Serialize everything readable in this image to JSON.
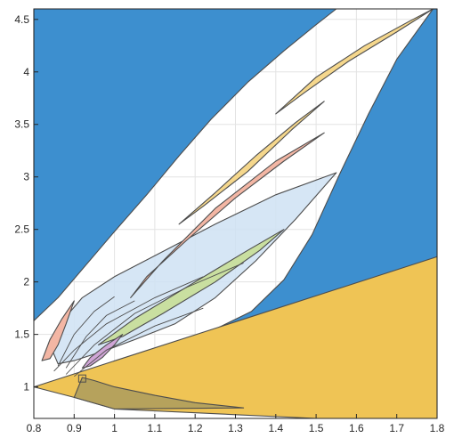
{
  "chart_data": {
    "type": "area",
    "title": "",
    "xlabel": "",
    "ylabel": "",
    "xlim": [
      0.8,
      1.8
    ],
    "ylim": [
      0.7,
      4.6
    ],
    "grid": true,
    "x_ticks": [
      0.8,
      0.9,
      1,
      1.1,
      1.2,
      1.3,
      1.4,
      1.5,
      1.6,
      1.7,
      1.8
    ],
    "x_tick_labels": [
      "0.8",
      "0.9",
      "1",
      "1.1",
      "1.2",
      "1.3",
      "1.4",
      "1.5",
      "1.6",
      "1.7",
      "1.8"
    ],
    "y_ticks": [
      1,
      1.5,
      2,
      2.5,
      3,
      3.5,
      4,
      4.5
    ],
    "y_tick_labels": [
      "1",
      "1.5",
      "2",
      "2.5",
      "3",
      "3.5",
      "4",
      "4.5"
    ],
    "colors": {
      "blue": "#3d8fcf",
      "yellow": "#efc455",
      "light_blue": "#cfe2f3",
      "salmon": "#f3b6a4",
      "gold": "#f5d78c",
      "green": "#c9dfa0",
      "purple": "#cfa5d6",
      "olive": "#b6a25c",
      "edge": "#4d4d4d"
    },
    "regions": [
      {
        "color_key": "blue",
        "points": [
          [
            0.8,
            4.6
          ],
          [
            1.55,
            4.6
          ],
          [
            1.5,
            4.45
          ],
          [
            1.42,
            4.2
          ],
          [
            1.33,
            3.9
          ],
          [
            1.24,
            3.55
          ],
          [
            1.16,
            3.2
          ],
          [
            1.08,
            2.83
          ],
          [
            1.0,
            2.48
          ],
          [
            0.92,
            2.12
          ],
          [
            0.86,
            1.85
          ],
          [
            0.8,
            1.63
          ]
        ]
      },
      {
        "color_key": "blue",
        "points": [
          [
            1.79,
            4.6
          ],
          [
            1.8,
            4.6
          ],
          [
            1.8,
            2.24
          ],
          [
            1.0,
            1.19
          ],
          [
            1.12,
            1.38
          ],
          [
            1.25,
            1.55
          ],
          [
            1.34,
            1.72
          ],
          [
            1.42,
            2.02
          ],
          [
            1.49,
            2.45
          ],
          [
            1.56,
            3.04
          ],
          [
            1.63,
            3.6
          ],
          [
            1.7,
            4.12
          ]
        ]
      },
      {
        "color_key": "yellow",
        "points": [
          [
            0.8,
            1.0
          ],
          [
            1.8,
            2.24
          ],
          [
            1.8,
            0.7
          ],
          [
            1.5,
            0.7
          ],
          [
            1.0,
            0.79
          ],
          [
            0.9,
            0.9
          ]
        ]
      },
      {
        "color_key": "olive",
        "points": [
          [
            0.9,
            0.9
          ],
          [
            1.0,
            0.79
          ],
          [
            1.32,
            0.8
          ],
          [
            1.2,
            0.85
          ],
          [
            1.1,
            0.92
          ],
          [
            1.0,
            1.0
          ],
          [
            0.95,
            1.06
          ],
          [
            0.92,
            1.09
          ]
        ]
      },
      {
        "color_key": "light_blue",
        "points": [
          [
            0.84,
            1.4
          ],
          [
            0.86,
            1.58
          ],
          [
            0.92,
            1.85
          ],
          [
            1.0,
            2.05
          ],
          [
            1.1,
            2.25
          ],
          [
            1.25,
            2.55
          ],
          [
            1.4,
            2.83
          ],
          [
            1.55,
            3.04
          ],
          [
            1.45,
            2.6
          ],
          [
            1.35,
            2.2
          ],
          [
            1.25,
            1.85
          ],
          [
            1.15,
            1.6
          ],
          [
            1.05,
            1.45
          ],
          [
            0.98,
            1.35
          ],
          [
            0.9,
            1.25
          ],
          [
            0.86,
            1.22
          ]
        ]
      },
      {
        "color_key": "green",
        "points": [
          [
            0.96,
            1.4
          ],
          [
            1.05,
            1.65
          ],
          [
            1.2,
            2.0
          ],
          [
            1.33,
            2.3
          ],
          [
            1.42,
            2.5
          ],
          [
            1.36,
            2.3
          ],
          [
            1.25,
            2.0
          ],
          [
            1.12,
            1.7
          ],
          [
            1.02,
            1.48
          ]
        ]
      },
      {
        "color_key": "salmon",
        "points": [
          [
            1.04,
            1.85
          ],
          [
            1.12,
            2.2
          ],
          [
            1.25,
            2.7
          ],
          [
            1.4,
            3.15
          ],
          [
            1.52,
            3.42
          ],
          [
            1.42,
            3.15
          ],
          [
            1.3,
            2.8
          ],
          [
            1.18,
            2.4
          ],
          [
            1.08,
            2.05
          ]
        ]
      },
      {
        "color_key": "gold",
        "points": [
          [
            1.16,
            2.55
          ],
          [
            1.25,
            2.85
          ],
          [
            1.35,
            3.2
          ],
          [
            1.45,
            3.52
          ],
          [
            1.52,
            3.72
          ],
          [
            1.44,
            3.45
          ],
          [
            1.33,
            3.05
          ],
          [
            1.22,
            2.72
          ]
        ]
      },
      {
        "color_key": "gold",
        "points": [
          [
            1.4,
            3.6
          ],
          [
            1.5,
            3.95
          ],
          [
            1.62,
            4.25
          ],
          [
            1.73,
            4.48
          ],
          [
            1.79,
            4.6
          ],
          [
            1.7,
            4.38
          ],
          [
            1.58,
            4.1
          ],
          [
            1.47,
            3.8
          ]
        ]
      },
      {
        "color_key": "purple",
        "points": [
          [
            0.92,
            1.18
          ],
          [
            0.94,
            1.28
          ],
          [
            0.98,
            1.4
          ],
          [
            1.02,
            1.5
          ],
          [
            1.0,
            1.4
          ],
          [
            0.97,
            1.28
          ],
          [
            0.94,
            1.2
          ]
        ]
      },
      {
        "color_key": "salmon",
        "points": [
          [
            0.82,
            1.25
          ],
          [
            0.84,
            1.45
          ],
          [
            0.87,
            1.65
          ],
          [
            0.9,
            1.82
          ],
          [
            0.88,
            1.6
          ],
          [
            0.86,
            1.4
          ],
          [
            0.84,
            1.27
          ]
        ]
      }
    ],
    "edge_lines": [
      [
        [
          0.85,
          1.15
        ],
        [
          0.9,
          1.35
        ],
        [
          0.98,
          1.6
        ],
        [
          1.1,
          1.85
        ],
        [
          1.22,
          2.05
        ]
      ],
      [
        [
          0.88,
          1.12
        ],
        [
          0.95,
          1.4
        ],
        [
          1.05,
          1.7
        ],
        [
          1.18,
          1.95
        ],
        [
          1.32,
          2.18
        ]
      ],
      [
        [
          0.9,
          1.1
        ],
        [
          0.98,
          1.35
        ],
        [
          1.1,
          1.58
        ],
        [
          1.22,
          1.75
        ]
      ],
      [
        [
          0.86,
          1.2
        ],
        [
          0.9,
          1.5
        ],
        [
          0.95,
          1.72
        ],
        [
          1.0,
          1.86
        ]
      ],
      [
        [
          0.88,
          1.18
        ],
        [
          0.93,
          1.48
        ],
        [
          0.98,
          1.68
        ],
        [
          1.05,
          1.82
        ]
      ]
    ],
    "markers": [
      {
        "label": "",
        "x": 0.92,
        "y": 1.08
      }
    ]
  }
}
